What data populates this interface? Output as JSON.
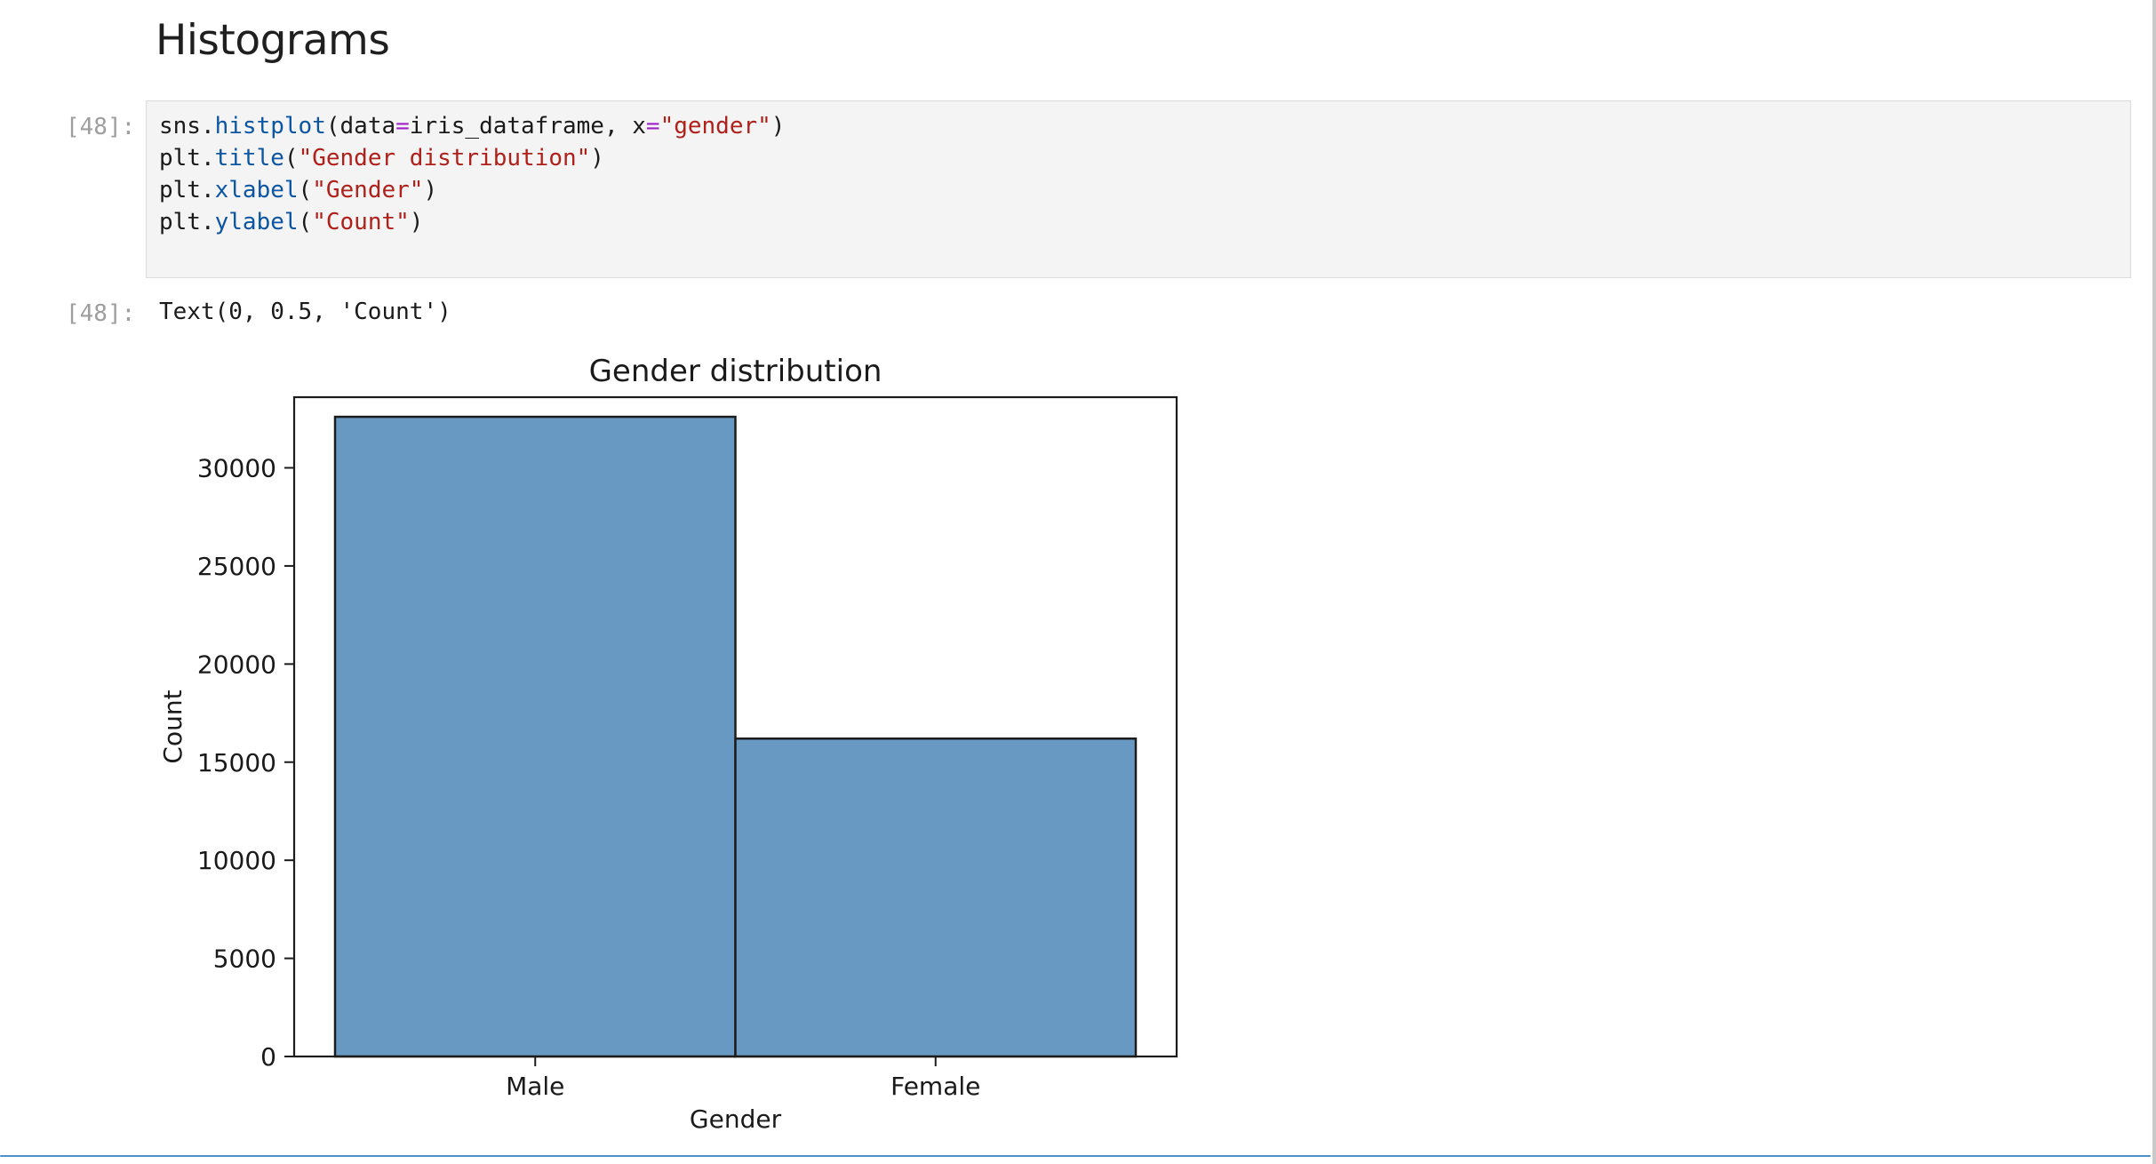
{
  "notebook": {
    "heading": "Histograms",
    "input_prompt": "[48]:",
    "output_prompt": "[48]:",
    "code_lines": [
      [
        {
          "t": "sns.",
          "c": ""
        },
        {
          "t": "histplot",
          "c": "fn"
        },
        {
          "t": "(data",
          "c": ""
        },
        {
          "t": "=",
          "c": "op"
        },
        {
          "t": "iris_dataframe, x",
          "c": ""
        },
        {
          "t": "=",
          "c": "op"
        },
        {
          "t": "\"gender\"",
          "c": "str"
        },
        {
          "t": ")",
          "c": ""
        }
      ],
      [
        {
          "t": "plt.",
          "c": ""
        },
        {
          "t": "title",
          "c": "fn"
        },
        {
          "t": "(",
          "c": ""
        },
        {
          "t": "\"Gender distribution\"",
          "c": "str"
        },
        {
          "t": ")",
          "c": ""
        }
      ],
      [
        {
          "t": "plt.",
          "c": ""
        },
        {
          "t": "xlabel",
          "c": "fn"
        },
        {
          "t": "(",
          "c": ""
        },
        {
          "t": "\"Gender\"",
          "c": "str"
        },
        {
          "t": ")",
          "c": ""
        }
      ],
      [
        {
          "t": "plt.",
          "c": ""
        },
        {
          "t": "ylabel",
          "c": "fn"
        },
        {
          "t": "(",
          "c": ""
        },
        {
          "t": "\"Count\"",
          "c": "str"
        },
        {
          "t": ")",
          "c": ""
        }
      ]
    ],
    "output_text": "Text(0, 0.5, 'Count')"
  },
  "colors": {
    "bar_fill": "#6899c3",
    "bar_edge": "#1c1c1c",
    "accent_border": "#4a90c8"
  },
  "chart_data": {
    "type": "bar",
    "title": "Gender distribution",
    "xlabel": "Gender",
    "ylabel": "Count",
    "categories": [
      "Male",
      "Female"
    ],
    "values": [
      32600,
      16200
    ],
    "ylim": [
      0,
      33600
    ],
    "yticks": [
      0,
      5000,
      10000,
      15000,
      20000,
      25000,
      30000
    ],
    "grid": false,
    "legend": "none"
  }
}
